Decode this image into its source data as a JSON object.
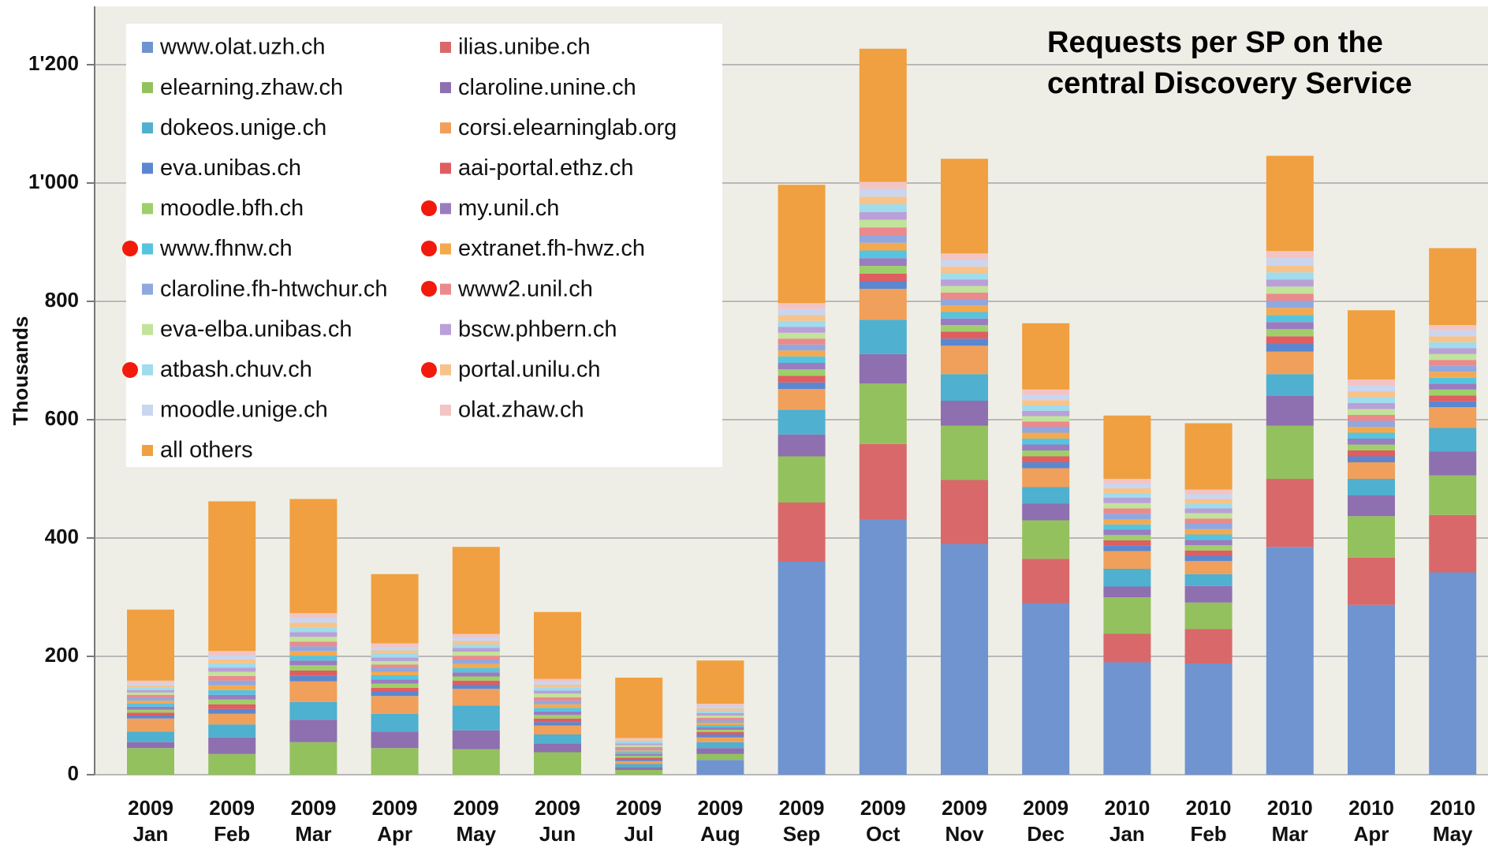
{
  "chart_data": {
    "type": "stacked_bar",
    "title": "Requests per SP on the central Discovery Service",
    "y_label": "Thousands",
    "categories": [
      [
        "2009",
        "Jan"
      ],
      [
        "2009",
        "Feb"
      ],
      [
        "2009",
        "Mar"
      ],
      [
        "2009",
        "Apr"
      ],
      [
        "2009",
        "May"
      ],
      [
        "2009",
        "Jun"
      ],
      [
        "2009",
        "Jul"
      ],
      [
        "2009",
        "Aug"
      ],
      [
        "2009",
        "Sep"
      ],
      [
        "2009",
        "Oct"
      ],
      [
        "2009",
        "Nov"
      ],
      [
        "2009",
        "Dec"
      ],
      [
        "2010",
        "Jan"
      ],
      [
        "2010",
        "Feb"
      ],
      [
        "2010",
        "Mar"
      ],
      [
        "2010",
        "Apr"
      ],
      [
        "2010",
        "May"
      ]
    ],
    "ylim": [
      0,
      1300
    ],
    "yticks": [
      0,
      200,
      400,
      600,
      800,
      {
        "value": 1000,
        "label": "1'000"
      },
      {
        "value": 1200,
        "label": "1'200"
      }
    ],
    "grid": true,
    "series": [
      {
        "name": "www.olat.uzh.ch",
        "color": "#6f94d0",
        "values": [
          0,
          0,
          0,
          0,
          0,
          0,
          0,
          25,
          360,
          432,
          390,
          290,
          190,
          188,
          385,
          287,
          342
        ]
      },
      {
        "name": "ilias.unibe.ch",
        "color": "#d9686b",
        "values": [
          0,
          0,
          0,
          0,
          0,
          0,
          0,
          0,
          100,
          127,
          108,
          75,
          48,
          58,
          115,
          80,
          97
        ]
      },
      {
        "name": "elearning.zhaw.ch",
        "color": "#93c15e",
        "values": [
          45,
          35,
          55,
          45,
          43,
          38,
          8,
          10,
          78,
          102,
          92,
          65,
          62,
          45,
          90,
          70,
          67
        ]
      },
      {
        "name": "claroline.unine.ch",
        "color": "#8e6fb0",
        "values": [
          10,
          28,
          38,
          28,
          32,
          15,
          5,
          10,
          37,
          50,
          42,
          28,
          18,
          28,
          50,
          35,
          40
        ]
      },
      {
        "name": "dokeos.unige.ch",
        "color": "#4fb0cf",
        "values": [
          18,
          22,
          30,
          30,
          42,
          15,
          5,
          10,
          42,
          58,
          45,
          28,
          30,
          20,
          37,
          28,
          40
        ]
      },
      {
        "name": "corsi.elearninglab.org",
        "color": "#f0a05a",
        "values": [
          22,
          18,
          35,
          30,
          28,
          15,
          5,
          8,
          35,
          52,
          48,
          32,
          30,
          22,
          38,
          28,
          35
        ]
      },
      {
        "name": "eva.unibas.ch",
        "color": "#5b87d0",
        "values": [
          5,
          8,
          9,
          7,
          7,
          6,
          3,
          5,
          11,
          13,
          12,
          10,
          9,
          9,
          13,
          10,
          10
        ]
      },
      {
        "name": "aai-portal.ethz.ch",
        "color": "#e05d60",
        "values": [
          5,
          8,
          9,
          7,
          7,
          6,
          3,
          4,
          11,
          13,
          12,
          10,
          9,
          9,
          13,
          10,
          10
        ]
      },
      {
        "name": "moodle.bfh.ch",
        "color": "#9fcf6a",
        "values": [
          5,
          8,
          9,
          7,
          7,
          6,
          3,
          4,
          11,
          13,
          11,
          10,
          9,
          9,
          12,
          10,
          10
        ]
      },
      {
        "name": "my.unil.ch",
        "color": "#9a7cc0",
        "values": [
          5,
          8,
          8,
          7,
          7,
          6,
          3,
          4,
          11,
          13,
          11,
          10,
          9,
          9,
          12,
          10,
          10
        ]
      },
      {
        "name": "www.fhnw.ch",
        "color": "#56c4de",
        "values": [
          5,
          8,
          8,
          7,
          7,
          6,
          3,
          4,
          11,
          13,
          11,
          10,
          9,
          9,
          12,
          10,
          10
        ]
      },
      {
        "name": "extranet.fh-hwz.ch",
        "color": "#f5a94f",
        "values": [
          5,
          8,
          8,
          6,
          7,
          6,
          3,
          4,
          10,
          13,
          11,
          10,
          9,
          9,
          12,
          10,
          10
        ]
      },
      {
        "name": "claroline.fh-htwchur.ch",
        "color": "#90a8e0",
        "values": [
          5,
          8,
          8,
          6,
          7,
          6,
          3,
          4,
          10,
          13,
          11,
          10,
          9,
          9,
          12,
          10,
          10
        ]
      },
      {
        "name": "www2.unil.ch",
        "color": "#eb8a8c",
        "values": [
          5,
          8,
          8,
          6,
          7,
          6,
          3,
          4,
          10,
          13,
          11,
          9,
          9,
          9,
          12,
          10,
          10
        ]
      },
      {
        "name": "eva-elba.unibas.ch",
        "color": "#c2e39a",
        "values": [
          4,
          7,
          8,
          6,
          7,
          6,
          3,
          4,
          10,
          13,
          11,
          9,
          9,
          9,
          12,
          10,
          10
        ]
      },
      {
        "name": "bscw.phbern.ch",
        "color": "#b9a0d8",
        "values": [
          4,
          7,
          8,
          6,
          6,
          5,
          3,
          4,
          10,
          13,
          11,
          9,
          9,
          8,
          12,
          10,
          10
        ]
      },
      {
        "name": "atbash.chuv.ch",
        "color": "#9fdcec",
        "values": [
          4,
          7,
          8,
          6,
          6,
          5,
          3,
          4,
          10,
          13,
          11,
          9,
          8,
          8,
          12,
          10,
          10
        ]
      },
      {
        "name": "portal.unilu.ch",
        "color": "#f8c38a",
        "values": [
          4,
          7,
          8,
          6,
          6,
          5,
          2,
          4,
          10,
          13,
          11,
          9,
          8,
          8,
          12,
          10,
          10
        ]
      },
      {
        "name": "moodle.unige.ch",
        "color": "#c9d6f0",
        "values": [
          4,
          7,
          8,
          6,
          6,
          5,
          2,
          4,
          10,
          13,
          11,
          9,
          8,
          8,
          12,
          10,
          10
        ]
      },
      {
        "name": "olat.zhaw.ch",
        "color": "#f2c4c4",
        "values": [
          4,
          7,
          8,
          6,
          6,
          5,
          2,
          4,
          10,
          12,
          11,
          9,
          8,
          8,
          12,
          10,
          9
        ]
      },
      {
        "name": "all others",
        "color": "#f0a040",
        "values": [
          120,
          253,
          193,
          117,
          147,
          113,
          102,
          73,
          200,
          225,
          160,
          112,
          107,
          112,
          161,
          117,
          130
        ]
      }
    ]
  }
}
